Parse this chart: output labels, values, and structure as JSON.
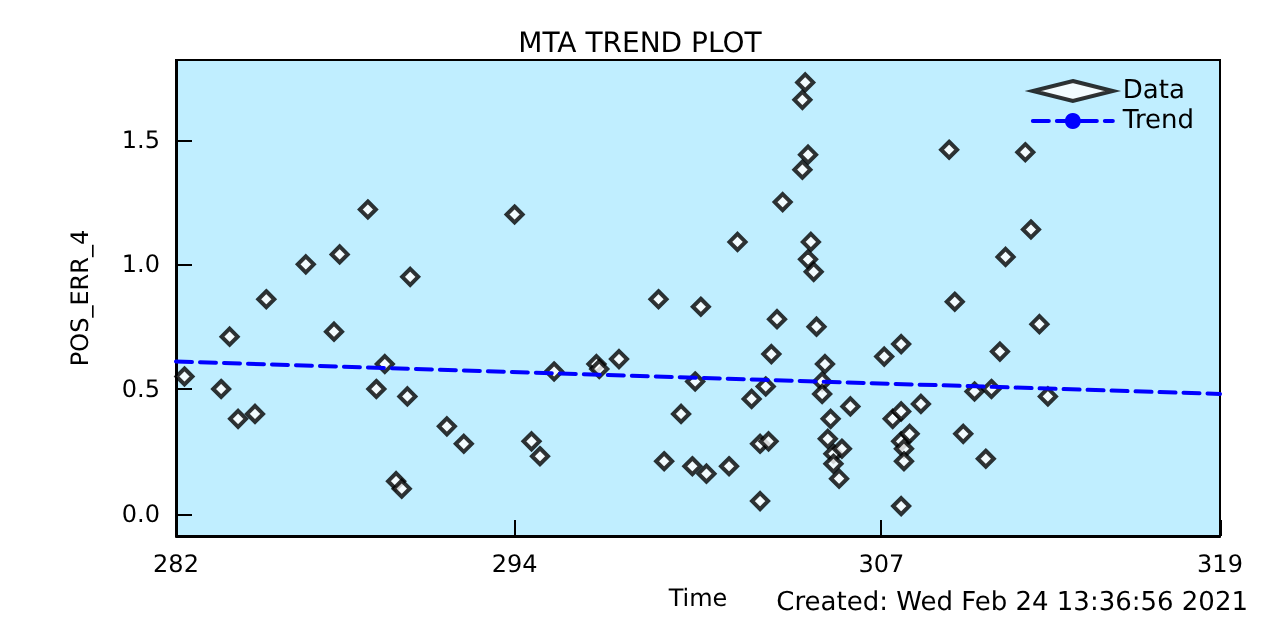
{
  "chart_data": {
    "type": "scatter",
    "title": "MTA TREND PLOT",
    "xlabel": "Time",
    "ylabel": "POS_ERR_4",
    "annotations": [
      "Created: Wed Feb 24 13:36:56 2021"
    ],
    "xlim": [
      282,
      319
    ],
    "xticks": [
      282,
      294,
      307,
      319
    ],
    "ylim": [
      -0.09,
      1.82
    ],
    "yticks": [
      {
        "value": 0,
        "label": "0.0"
      },
      {
        "value": 0.5,
        "label": "0.5"
      },
      {
        "value": 1,
        "label": "1.0"
      },
      {
        "value": 1.5,
        "label": "1.5"
      }
    ],
    "grid": false,
    "legend": "top right",
    "series": [
      {
        "name": "Data",
        "marker": "diamond",
        "color": "#000000",
        "x": [
          282.3,
          283.6,
          283.9,
          284.2,
          284.8,
          285.2,
          286.6,
          287.6,
          287.8,
          288.8,
          289.1,
          289.4,
          289.8,
          290.0,
          290.2,
          290.3,
          291.6,
          292.2,
          294.0,
          294.6,
          294.9,
          295.4,
          296.9,
          297.0,
          297.7,
          299.1,
          299.3,
          299.9,
          300.3,
          300.4,
          300.6,
          300.8,
          301.6,
          301.9,
          302.4,
          302.7,
          302.7,
          303.0,
          302.9,
          303.1,
          303.3,
          303.5,
          304.2,
          304.3,
          304.2,
          304.4,
          304.5,
          304.4,
          304.6,
          304.7,
          305.0,
          304.9,
          304.9,
          305.2,
          305.1,
          305.3,
          305.6,
          305.3,
          305.5,
          305.9,
          307.1,
          307.4,
          307.7,
          307.7,
          308.4,
          307.7,
          307.8,
          308.0,
          307.8,
          307.7,
          309.4,
          309.6,
          309.9,
          310.3,
          310.7,
          310.9,
          311.2,
          311.4,
          312.1,
          312.3,
          312.6,
          312.9
        ],
        "values": [
          0.55,
          0.5,
          0.71,
          0.38,
          0.4,
          0.86,
          1.0,
          0.73,
          1.04,
          1.22,
          0.5,
          0.6,
          0.13,
          0.1,
          0.47,
          0.95,
          0.35,
          0.28,
          1.2,
          0.29,
          0.23,
          0.57,
          0.6,
          0.58,
          0.62,
          0.86,
          0.21,
          0.4,
          0.19,
          0.53,
          0.83,
          0.16,
          0.19,
          1.09,
          0.46,
          0.05,
          0.28,
          0.29,
          0.51,
          0.64,
          0.78,
          1.25,
          1.66,
          1.73,
          1.38,
          1.44,
          1.09,
          1.02,
          0.97,
          0.75,
          0.6,
          0.53,
          0.48,
          0.38,
          0.3,
          0.24,
          0.26,
          0.2,
          0.14,
          0.43,
          0.63,
          0.38,
          0.68,
          0.41,
          0.44,
          0.29,
          0.26,
          0.32,
          0.21,
          0.03,
          1.46,
          0.85,
          0.32,
          0.49,
          0.22,
          0.5,
          0.65,
          1.03,
          1.45,
          1.14,
          0.76,
          0.47
        ]
      },
      {
        "name": "Trend",
        "type": "line",
        "marker": "none",
        "line_style": "dashed",
        "color": "#0000ff",
        "x": [
          282,
          319
        ],
        "values": [
          0.61,
          0.48
        ]
      }
    ]
  }
}
